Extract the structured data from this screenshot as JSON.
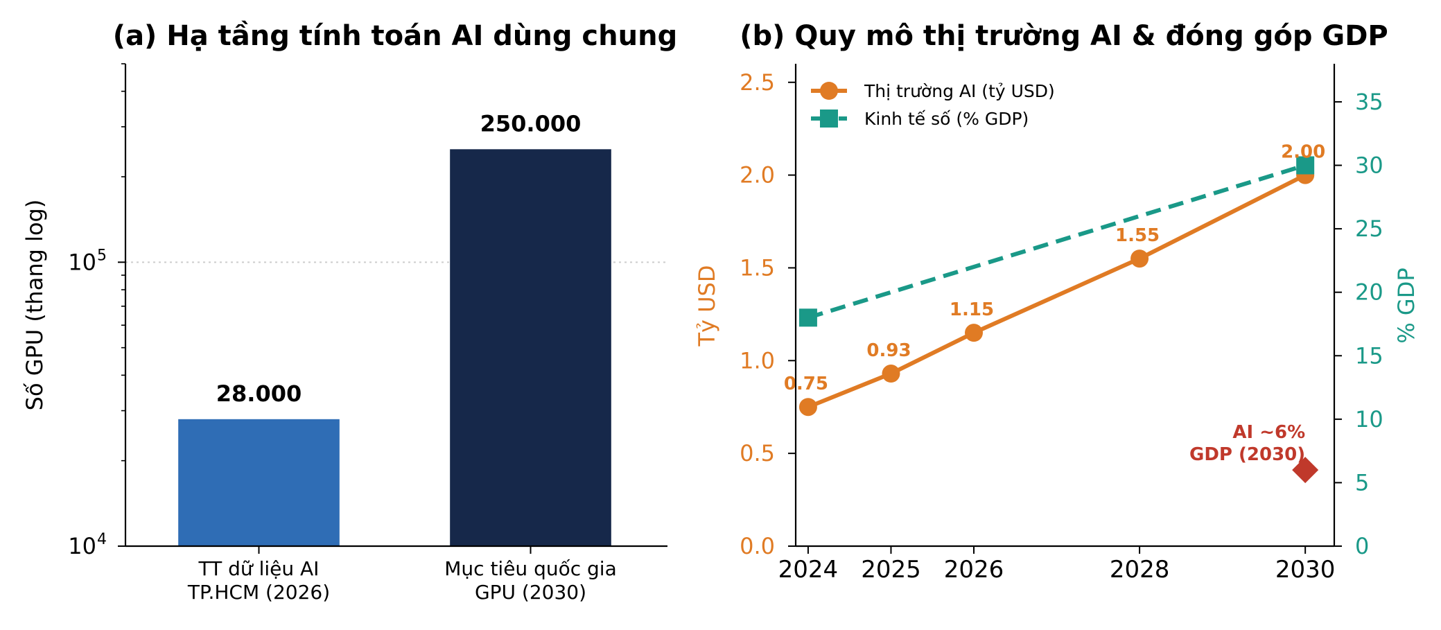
{
  "chart_data": [
    {
      "type": "bar",
      "title": "(a) Hạ tầng tính toán AI dùng chung",
      "ylabel": "Số GPU (thang log)",
      "yscale": "log",
      "ylim": [
        10000,
        500000
      ],
      "yticks": [
        {
          "value": 10000,
          "base": "10",
          "exp": "4"
        },
        {
          "value": 100000,
          "base": "10",
          "exp": "5"
        }
      ],
      "grid": "dotted line at 10^5",
      "categories": [
        {
          "lines": [
            "TT dữ liệu AI",
            "TP.HCM (2026)"
          ]
        },
        {
          "lines": [
            "Mục tiêu quốc gia",
            "GPU (2030)"
          ]
        }
      ],
      "values": [
        28000,
        250000
      ],
      "value_labels": [
        "28.000",
        "250.000"
      ],
      "colors": [
        "#2f6db5",
        "#16284a"
      ]
    },
    {
      "type": "line",
      "title": "(b) Quy mô thị trường AI & đóng góp GDP",
      "x": [
        2024,
        2025,
        2026,
        2028,
        2030
      ],
      "xlim": [
        2023.85,
        2030.35
      ],
      "xticks": [
        "2024",
        "2025",
        "2026",
        "2028",
        "2030"
      ],
      "ylabel_left": "Tỷ USD",
      "ylim_left": [
        0,
        2.6
      ],
      "yticks_left": [
        "0.0",
        "0.5",
        "1.0",
        "1.5",
        "2.0",
        "2.5"
      ],
      "ylabel_right": "% GDP",
      "ylim_right": [
        0,
        38
      ],
      "yticks_right": [
        "0",
        "5",
        "10",
        "15",
        "20",
        "25",
        "30",
        "35"
      ],
      "legend_position": "top-left",
      "series": [
        {
          "name": "Thị trường AI (tỷ USD)",
          "axis": "left",
          "x": [
            2024,
            2025,
            2026,
            2028,
            2030
          ],
          "values": [
            0.75,
            0.93,
            1.15,
            1.55,
            2.0
          ],
          "value_labels": [
            "0.75",
            "0.93",
            "1.15",
            "1.55",
            "2.00"
          ],
          "color": "#e07b24",
          "marker": "circle",
          "line": "solid"
        },
        {
          "name": "Kinh tế số (% GDP)",
          "axis": "right",
          "x": [
            2024,
            2030
          ],
          "values": [
            18,
            30
          ],
          "color": "#1a9988",
          "marker": "square",
          "line": "dashed"
        }
      ],
      "annotation": {
        "x": 2030,
        "value": 6,
        "axis": "right",
        "lines": [
          "AI ~6%",
          "GDP (2030)"
        ],
        "color": "#c0392b",
        "marker": "diamond"
      },
      "colors": {
        "axis_left": "#e07b24",
        "axis_right": "#1a9988"
      }
    }
  ]
}
